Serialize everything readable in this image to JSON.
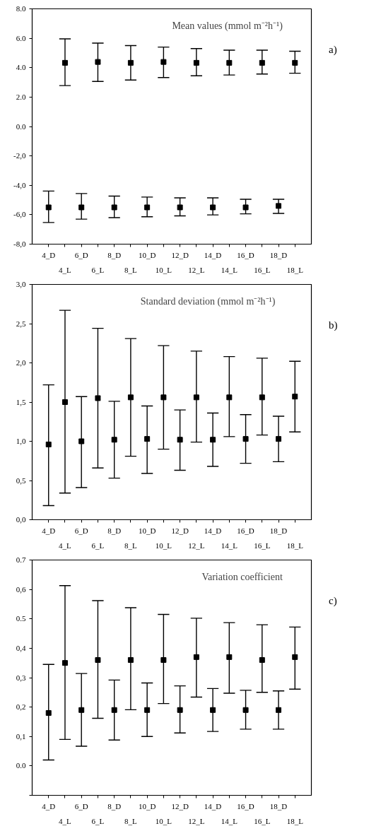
{
  "chart_data": [
    {
      "type": "scatter",
      "title": "Mean values (mmol m⁻²h⁻¹)",
      "annotations": [
        "a)"
      ],
      "categories": [
        "4_D",
        "4_L",
        "6_D",
        "6_L",
        "8_D",
        "8_L",
        "10_D",
        "10_L",
        "12_D",
        "12_L",
        "14_D",
        "14_L",
        "16_D",
        "16_L",
        "18_D",
        "18_L"
      ],
      "values": [
        -5.5,
        4.33,
        -5.5,
        4.39,
        -5.5,
        4.33,
        -5.5,
        4.39,
        -5.5,
        4.33,
        -5.5,
        4.33,
        -5.5,
        4.33,
        -5.4,
        4.33
      ],
      "errors": [
        [
          -6.53,
          -4.39
        ],
        [
          2.78,
          5.96
        ],
        [
          -6.3,
          -4.56
        ],
        [
          3.06,
          5.67
        ],
        [
          -6.2,
          -4.73
        ],
        [
          3.16,
          5.5
        ],
        [
          -6.14,
          -4.8
        ],
        [
          3.33,
          5.4
        ],
        [
          -6.08,
          -4.85
        ],
        [
          3.45,
          5.3
        ],
        [
          -6.01,
          -4.85
        ],
        [
          3.5,
          5.19
        ],
        [
          -5.94,
          -4.95
        ],
        [
          3.57,
          5.19
        ],
        [
          -5.91,
          -4.95
        ],
        [
          3.62,
          5.12
        ]
      ],
      "color": "#000000",
      "marker": "square",
      "grid": false,
      "ylim": [
        -8,
        8
      ],
      "yticks": [
        {
          "value": -8,
          "label": "-8,0"
        },
        {
          "value": -6,
          "label": "-6,0"
        },
        {
          "value": -4,
          "label": "-4,0"
        },
        {
          "value": -2,
          "label": "-2,0"
        },
        {
          "value": 0,
          "label": "0.0"
        },
        {
          "value": 2,
          "label": "2.0"
        },
        {
          "value": 4,
          "label": "4.0"
        },
        {
          "value": 6,
          "label": "6.0"
        },
        {
          "value": 8,
          "label": "8.0"
        }
      ]
    },
    {
      "type": "scatter",
      "title": "Standard deviation (mmol m⁻²h⁻¹)",
      "annotations": [
        "b)"
      ],
      "categories": [
        "4_D",
        "4_L",
        "6_D",
        "6_L",
        "8_D",
        "8_L",
        "10_D",
        "10_L",
        "12_D",
        "12_L",
        "14_D",
        "14_L",
        "16_D",
        "16_L",
        "18_D",
        "18_L"
      ],
      "values": [
        0.96,
        1.5,
        1.0,
        1.55,
        1.02,
        1.56,
        1.03,
        1.56,
        1.02,
        1.56,
        1.02,
        1.56,
        1.03,
        1.56,
        1.03,
        1.57
      ],
      "errors": [
        [
          0.18,
          1.72
        ],
        [
          0.34,
          2.67
        ],
        [
          0.41,
          1.57
        ],
        [
          0.66,
          2.44
        ],
        [
          0.53,
          1.51
        ],
        [
          0.81,
          2.31
        ],
        [
          0.59,
          1.45
        ],
        [
          0.9,
          2.22
        ],
        [
          0.63,
          1.4
        ],
        [
          0.99,
          2.15
        ],
        [
          0.68,
          1.36
        ],
        [
          1.06,
          2.08
        ],
        [
          0.72,
          1.34
        ],
        [
          1.08,
          2.06
        ],
        [
          0.74,
          1.32
        ],
        [
          1.12,
          2.02
        ]
      ],
      "color": "#000000",
      "marker": "square",
      "grid": false,
      "ylim": [
        0,
        3
      ],
      "yticks": [
        {
          "value": 0,
          "label": "0,0"
        },
        {
          "value": 0.5,
          "label": "0,5"
        },
        {
          "value": 1,
          "label": "1,0"
        },
        {
          "value": 1.5,
          "label": "1,5"
        },
        {
          "value": 2,
          "label": "2,0"
        },
        {
          "value": 2.5,
          "label": "2,5"
        },
        {
          "value": 3,
          "label": "3,0"
        }
      ]
    },
    {
      "type": "scatter",
      "title": "Variation coefficient",
      "annotations": [
        "c)"
      ],
      "categories": [
        "4_D",
        "4_L",
        "6_D",
        "6_L",
        "8_D",
        "8_L",
        "10_D",
        "10_L",
        "12_D",
        "12_L",
        "14_D",
        "14_L",
        "16_D",
        "16_L",
        "18_D",
        "18_L"
      ],
      "values": [
        0.18,
        0.35,
        0.19,
        0.36,
        0.19,
        0.36,
        0.19,
        0.36,
        0.19,
        0.37,
        0.19,
        0.37,
        0.19,
        0.36,
        0.19,
        0.37
      ],
      "errors": [
        [
          0.02,
          0.345
        ],
        [
          0.09,
          0.613
        ],
        [
          0.067,
          0.314
        ],
        [
          0.162,
          0.562
        ],
        [
          0.088,
          0.292
        ],
        [
          0.191,
          0.538
        ],
        [
          0.1,
          0.282
        ],
        [
          0.212,
          0.515
        ],
        [
          0.112,
          0.272
        ],
        [
          0.234,
          0.502
        ],
        [
          0.117,
          0.263
        ],
        [
          0.247,
          0.487
        ],
        [
          0.125,
          0.257
        ],
        [
          0.25,
          0.48
        ],
        [
          0.125,
          0.255
        ],
        [
          0.261,
          0.472
        ]
      ],
      "color": "#000000",
      "marker": "square",
      "grid": false,
      "ylim": [
        -0.1,
        0.7
      ],
      "yticks": [
        {
          "value": -0.1,
          "label": null
        },
        {
          "value": 0,
          "label": "0.0"
        },
        {
          "value": 0.1,
          "label": "0,1"
        },
        {
          "value": 0.2,
          "label": "0,2"
        },
        {
          "value": 0.3,
          "label": "0,3"
        },
        {
          "value": 0.4,
          "label": "0,4"
        },
        {
          "value": 0.5,
          "label": "0.5"
        },
        {
          "value": 0.6,
          "label": "0,6"
        },
        {
          "value": 0.7,
          "label": "0.7"
        }
      ]
    }
  ]
}
